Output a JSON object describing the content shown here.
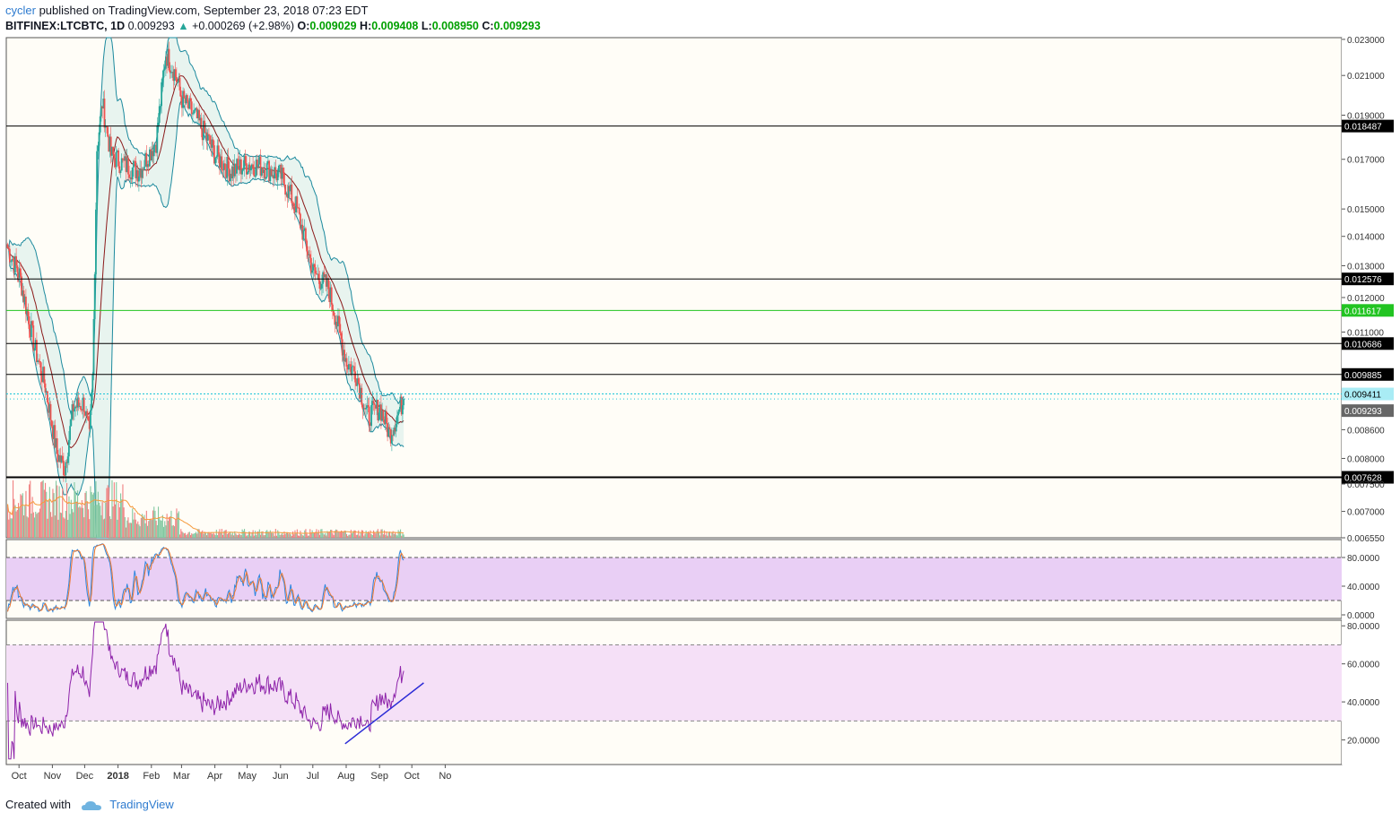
{
  "header": {
    "author": "cycler",
    "published": "published on TradingView.com, September 23, 2018 07:23 EDT",
    "symbol": "BITFINEX:LTCBTC, 1D",
    "last": "0.009293",
    "change": "+0.000269 (+2.98%)",
    "open_label": "O:",
    "open": "0.009029",
    "high_label": "H:",
    "high": "0.009408",
    "low_label": "L:",
    "low": "0.008950",
    "close_label": "C:",
    "close": "0.009293"
  },
  "footer": {
    "created": "Created with",
    "brand": "TradingView",
    "logo_icon": "tradingview-cloud-icon"
  },
  "colors": {
    "up": "#26a69a",
    "down": "#ef5350",
    "bb": "#1d8a9e",
    "bb_fill": "#e8f4ef",
    "basis": "#8b1a1a",
    "vol_up": "#82c8a0",
    "vol_down": "#f08080",
    "vol_ma": "#f59a3c",
    "stoch_k": "#2e86de",
    "stoch_d": "#f07a30",
    "band": "#e9cff5",
    "rsi": "#8e24aa",
    "rsi_band": "#f5e0f7",
    "trend": "#2b2bd6",
    "hline": "#000000",
    "green_line": "#22c422",
    "cyan_line": "#1ac4d8"
  },
  "chart_data": [
    {
      "type": "candlestick",
      "title": "BITFINEX:LTCBTC, 1D",
      "scale": "log",
      "ylim": [
        0.00655,
        0.0231
      ],
      "x_start": "2018-09-20 (approx. 2017-09-20 start)",
      "time_labels": [
        "Oct",
        "Nov",
        "Dec",
        "2018",
        "Feb",
        "Mar",
        "Apr",
        "May",
        "Jun",
        "Jul",
        "Aug",
        "Sep",
        "Oct",
        "No"
      ],
      "y_ticks": [
        "0.023000",
        "0.021000",
        "0.019000",
        "0.017000",
        "0.015000",
        "0.014000",
        "0.013000",
        "0.012000",
        "0.011000",
        "0.008600",
        "0.008000",
        "0.007500",
        "0.007000",
        "0.006550"
      ],
      "horizontal_levels": [
        {
          "value": "0.018487",
          "color": "#000000",
          "label": "0.018487"
        },
        {
          "value": "0.012576",
          "color": "#000000",
          "label": "0.012576"
        },
        {
          "value": "0.011617",
          "color": "#22c422",
          "label": "0.011617"
        },
        {
          "value": "0.010686",
          "color": "#000000",
          "label": "0.010686"
        },
        {
          "value": "0.009885",
          "color": "#000000",
          "label": "0.009885"
        },
        {
          "value": "0.009411",
          "color": "#1ac4d8",
          "label": "0.009411"
        },
        {
          "value": "0.007628",
          "color": "#000000",
          "label": "0.007628"
        }
      ],
      "last_price_label": "0.009293",
      "close_keypoints": [
        [
          "2017-09-20",
          0.0136
        ],
        [
          "2017-10-01",
          0.0127
        ],
        [
          "2017-10-15",
          0.0106
        ],
        [
          "2017-10-25",
          0.0096
        ],
        [
          "2017-11-05",
          0.0081
        ],
        [
          "2017-11-12",
          0.0078
        ],
        [
          "2017-11-20",
          0.0091
        ],
        [
          "2017-11-30",
          0.0092
        ],
        [
          "2017-12-05",
          0.0084
        ],
        [
          "2017-12-08",
          0.0098
        ],
        [
          "2017-12-12",
          0.0175
        ],
        [
          "2017-12-17",
          0.0196
        ],
        [
          "2017-12-25",
          0.0172
        ],
        [
          "2018-01-05",
          0.0168
        ],
        [
          "2018-01-20",
          0.0165
        ],
        [
          "2018-02-05",
          0.0178
        ],
        [
          "2018-02-14",
          0.0222
        ],
        [
          "2018-02-22",
          0.0212
        ],
        [
          "2018-03-01",
          0.0198
        ],
        [
          "2018-03-15",
          0.0188
        ],
        [
          "2018-04-01",
          0.0172
        ],
        [
          "2018-04-15",
          0.0165
        ],
        [
          "2018-05-01",
          0.0168
        ],
        [
          "2018-05-15",
          0.0167
        ],
        [
          "2018-06-01",
          0.0163
        ],
        [
          "2018-06-15",
          0.0151
        ],
        [
          "2018-07-01",
          0.0128
        ],
        [
          "2018-07-15",
          0.0123
        ],
        [
          "2018-08-01",
          0.0102
        ],
        [
          "2018-08-10",
          0.0099
        ],
        [
          "2018-08-20",
          0.0089
        ],
        [
          "2018-09-01",
          0.0091
        ],
        [
          "2018-09-10",
          0.0085
        ],
        [
          "2018-09-23",
          0.009293
        ]
      ],
      "indicators": [
        "Bollinger Bands (upper/lower, basis)",
        "Volume with moving average"
      ]
    },
    {
      "type": "line",
      "title": "",
      "y_ticks": [
        "80.0000",
        "40.0000",
        "0.0000"
      ],
      "band": [
        20,
        80
      ],
      "series": [
        {
          "values_note": "oscillates between 0 and 100"
        },
        {
          "values_note": "smoothed %K"
        }
      ]
    },
    {
      "type": "line",
      "title": "",
      "y_ticks": [
        "80.0000",
        "60.0000",
        "40.0000",
        "20.0000"
      ],
      "band": [
        30,
        70
      ],
      "series": [
        {
          "values_note": "RSI oscillating 15-78"
        }
      ],
      "trendline": {
        "from": [
          "2018-07-31",
          18
        ],
        "to": [
          "2018-10-12",
          50
        ]
      }
    }
  ]
}
